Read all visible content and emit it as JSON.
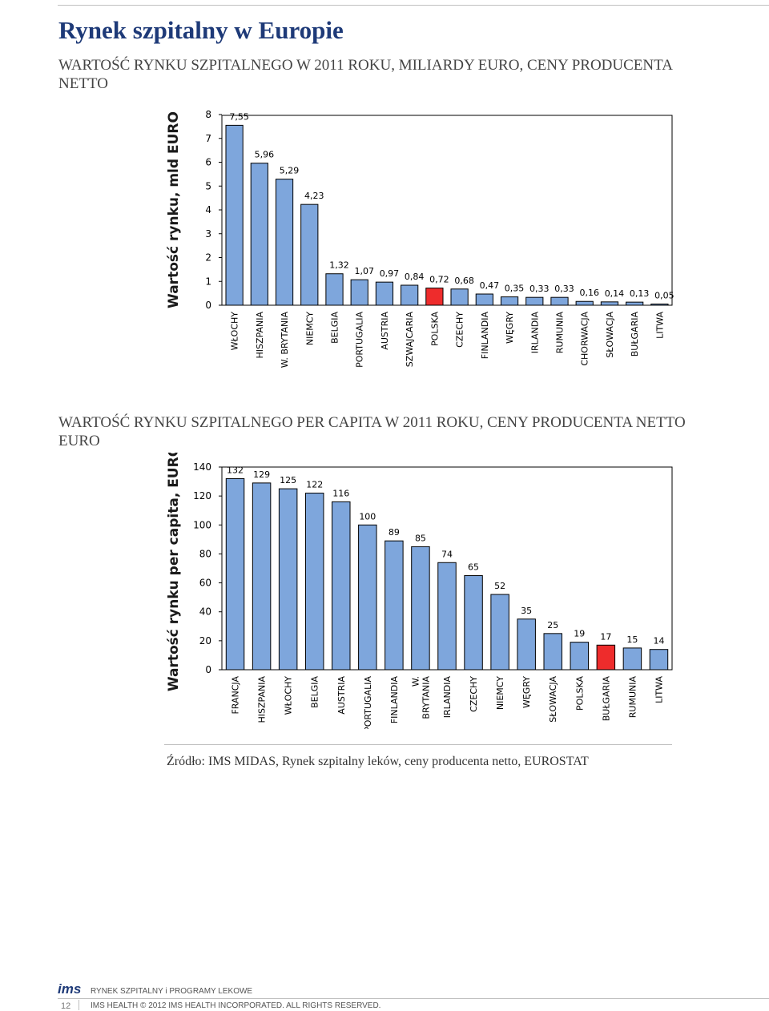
{
  "page": {
    "title": "Rynek szpitalny w Europie",
    "source": "Źródło: IMS MIDAS, Rynek szpitalny leków, ceny producenta netto, EUROSTAT"
  },
  "colors": {
    "bar": "#7ea6dc",
    "highlight": "#ee2c2c",
    "title": "#1e3a78"
  },
  "sections": [
    {
      "title": "WARTOŚĆ RYNKU SZPITALNEGO W 2011 ROKU, MILIARDY EURO, CENY PRODUCENTA NETTO"
    },
    {
      "title": "WARTOŚĆ RYNKU SZPITALNEGO PER CAPITA W 2011 ROKU, CENY PRODUCENTA NETTO EURO"
    }
  ],
  "chart_data": [
    {
      "type": "bar",
      "ylabel": "Wartość rynku, mld EURO",
      "ylim": [
        0,
        8
      ],
      "yticks": [
        "0",
        "1",
        "2",
        "3",
        "4",
        "5",
        "6",
        "7",
        "8"
      ],
      "grid": false,
      "highlight_index": 8,
      "categories": [
        "WŁOCHY",
        "HISZPANIA",
        "W. BRYTANIA",
        "NIEMCY",
        "BELGIA",
        "PORTUGALIA",
        "AUSTRIA",
        "SZWAJCARIA",
        "POLSKA",
        "CZECHY",
        "FINLANDIA",
        "WĘGRY",
        "IRLANDIA",
        "RUMUNIA",
        "CHORWACJA",
        "SŁOWACJA",
        "BUŁGARIA",
        "LITWA"
      ],
      "values": [
        7.55,
        5.96,
        5.29,
        4.23,
        1.32,
        1.07,
        0.97,
        0.84,
        0.72,
        0.68,
        0.47,
        0.35,
        0.33,
        0.33,
        0.16,
        0.14,
        0.13,
        0.05
      ],
      "value_labels": [
        "7,55",
        "5,96",
        "5,29",
        "4,23",
        "1,32",
        "1,07",
        "0,97",
        "0,84",
        "0,72",
        "0,68",
        "0,47",
        "0,35",
        "0,33",
        "0,33",
        "0,16",
        "0,14",
        "0,13",
        "0,05"
      ]
    },
    {
      "type": "bar",
      "ylabel": "Wartość rynku per capita, EURO",
      "ylim": [
        0,
        140
      ],
      "yticks": [
        "0",
        "20",
        "40",
        "60",
        "80",
        "100",
        "120",
        "140"
      ],
      "grid": false,
      "highlight_index": 14,
      "categories": [
        "FRANCJA",
        "HISZPANIA",
        "WŁOCHY",
        "BELGIA",
        "AUSTRIA",
        "PORTUGALIA",
        "FINLANDIA",
        "W. BRYTANIA",
        "IRLANDIA",
        "CZECHY",
        "NIEMCY",
        "WĘGRY",
        "SŁOWACJA",
        "POLSKA",
        "BUŁGARIA",
        "RUMUNIA",
        "LITWA"
      ],
      "values": [
        132,
        129,
        125,
        122,
        116,
        100,
        89,
        85,
        74,
        65,
        52,
        35,
        25,
        19,
        17,
        15,
        14
      ],
      "value_labels": [
        "132",
        "129",
        "125",
        "122",
        "116",
        "100",
        "89",
        "85",
        "74",
        "65",
        "52",
        "35",
        "25",
        "19",
        "17",
        "15",
        "14"
      ]
    }
  ],
  "footer": {
    "logo": "ims",
    "section": "RYNEK SZPITALNY i PROGRAMY LEKOWE",
    "page_number": "12",
    "copyright": "IMS HEALTH © 2012 IMS HEALTH INCORPORATED. ALL RIGHTS RESERVED."
  }
}
